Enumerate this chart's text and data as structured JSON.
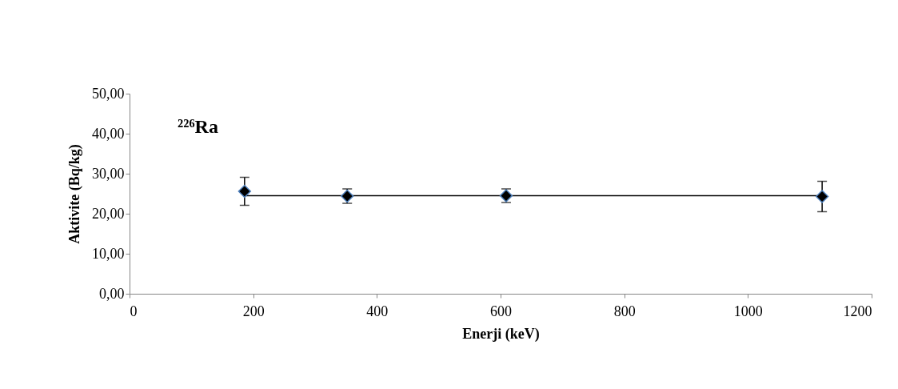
{
  "chart_data": {
    "type": "scatter",
    "xlabel": "Enerji (keV)",
    "ylabel": "Aktivite (Bq/kg)",
    "annotations": [
      "²²⁶Ra"
    ],
    "xlim": [
      0,
      1200
    ],
    "xticks": [
      0,
      200,
      400,
      600,
      800,
      1000,
      1200
    ],
    "ylim": [
      0,
      50
    ],
    "yticks": [
      {
        "value": 0,
        "label": "0,00"
      },
      {
        "value": 10,
        "label": "10,00"
      },
      {
        "value": 20,
        "label": "20,00"
      },
      {
        "value": 30,
        "label": "30,00"
      },
      {
        "value": 40,
        "label": "40,00"
      },
      {
        "value": 50,
        "label": "50,00"
      }
    ],
    "grid": false,
    "marker": "diamond",
    "series": [
      {
        "type": "line",
        "color": "#000000",
        "x": [
          186,
          1120
        ],
        "values": [
          24.5,
          24.5
        ],
        "marker": "none",
        "line_style": "solid"
      },
      {
        "color": "#000000",
        "x": [
          186,
          352,
          609,
          1120
        ],
        "values": [
          25.6,
          24.4,
          24.5,
          24.3
        ],
        "errors": [
          3.5,
          1.8,
          1.7,
          3.8
        ]
      }
    ]
  }
}
